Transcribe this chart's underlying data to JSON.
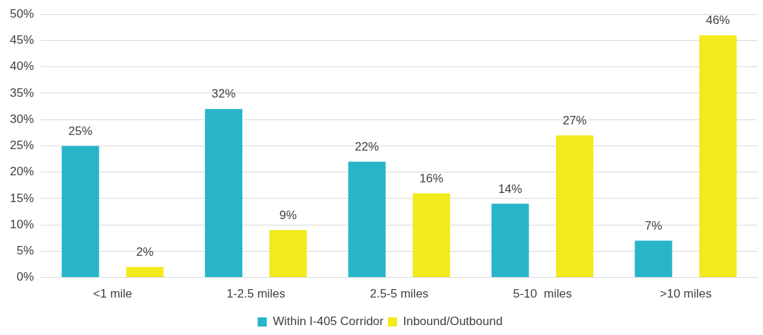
{
  "chart_data": {
    "type": "bar",
    "categories": [
      "<1 mile",
      "1-2.5 miles",
      "2.5-5 miles",
      "5-10  miles",
      ">10 miles"
    ],
    "series": [
      {
        "name": "Within I-405 Corridor",
        "color": "#29b5c9",
        "values": [
          25,
          32,
          22,
          14,
          7
        ],
        "value_labels": [
          "25%",
          "32%",
          "22%",
          "14%",
          "7%"
        ]
      },
      {
        "name": "Inbound/Outbound",
        "color": "#f2ea1c",
        "values": [
          2,
          9,
          16,
          27,
          46
        ],
        "value_labels": [
          "2%",
          "9%",
          "16%",
          "27%",
          "46%"
        ]
      }
    ],
    "ylim": [
      0,
      50
    ],
    "yticks": [
      {
        "value": 0,
        "label": "0%"
      },
      {
        "value": 5,
        "label": "5%"
      },
      {
        "value": 10,
        "label": "10%"
      },
      {
        "value": 15,
        "label": "15%"
      },
      {
        "value": 20,
        "label": "20%"
      },
      {
        "value": 25,
        "label": "25%"
      },
      {
        "value": 30,
        "label": "30%"
      },
      {
        "value": 35,
        "label": "35%"
      },
      {
        "value": 40,
        "label": "40%"
      },
      {
        "value": 45,
        "label": "45%"
      },
      {
        "value": 50,
        "label": "50%"
      }
    ],
    "grid": "y",
    "legend": "bottom"
  }
}
